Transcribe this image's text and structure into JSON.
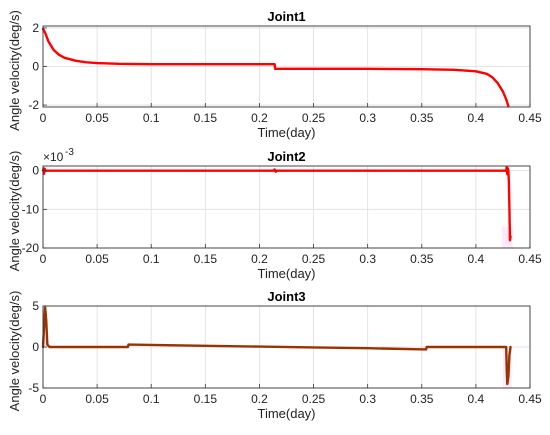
{
  "chart_data": [
    {
      "type": "line",
      "title": "Joint1",
      "xlabel": "Time(day)",
      "ylabel": "Angle velocity(deg/s)",
      "xlim": [
        0,
        0.45
      ],
      "ylim": [
        -2.1,
        2.1
      ],
      "xticks": [
        0,
        0.05,
        0.1,
        0.15,
        0.2,
        0.25,
        0.3,
        0.35,
        0.4,
        0.45
      ],
      "xtick_labels": [
        "0",
        "0.05",
        "0.1",
        "0.15",
        "0.2",
        "0.25",
        "0.3",
        "0.35",
        "0.4",
        "0.45"
      ],
      "yticks": [
        -2,
        0,
        2
      ],
      "ytick_labels": [
        "-2",
        "0",
        "2"
      ],
      "grid": true,
      "series": [
        {
          "color": "#ff0000",
          "x": [
            0,
            0.002,
            0.005,
            0.01,
            0.015,
            0.02,
            0.03,
            0.04,
            0.05,
            0.07,
            0.1,
            0.15,
            0.2,
            0.214,
            0.2145,
            0.216,
            0.25,
            0.3,
            0.35,
            0.38,
            0.4,
            0.41,
            0.415,
            0.42,
            0.425,
            0.428,
            0.43
          ],
          "y": [
            1.95,
            1.75,
            1.3,
            0.85,
            0.6,
            0.45,
            0.3,
            0.22,
            0.18,
            0.14,
            0.12,
            0.12,
            0.12,
            0.12,
            -0.12,
            -0.12,
            -0.12,
            -0.12,
            -0.14,
            -0.17,
            -0.25,
            -0.38,
            -0.55,
            -0.85,
            -1.3,
            -1.7,
            -2.05
          ]
        }
      ]
    },
    {
      "type": "line",
      "title": "Joint2",
      "xlabel": "Time(day)",
      "ylabel": "Angle velocity(deg/s)",
      "y_exponent_label": "×10",
      "y_exponent_power": "-3",
      "xlim": [
        0,
        0.45
      ],
      "ylim": [
        -20,
        1.2
      ],
      "xticks": [
        0,
        0.05,
        0.1,
        0.15,
        0.2,
        0.25,
        0.3,
        0.35,
        0.4,
        0.45
      ],
      "xtick_labels": [
        "0",
        "0.05",
        "0.1",
        "0.15",
        "0.2",
        "0.25",
        "0.3",
        "0.35",
        "0.4",
        "0.45"
      ],
      "yticks": [
        0,
        -10,
        -20
      ],
      "ytick_labels": [
        "0",
        "-10",
        "-20"
      ],
      "grid": true,
      "shaded_regions": [
        [
          0.424,
          0.434,
          -20,
          -14.5
        ]
      ],
      "series": [
        {
          "color": "#ff0000",
          "x": [
            0,
            0.0005,
            0.001,
            0.0015,
            0.002,
            0.1,
            0.2,
            0.213,
            0.214,
            0.215,
            0.216,
            0.3,
            0.4,
            0.428,
            0.4285,
            0.429,
            0.4295,
            0.43,
            0.4305,
            0.431,
            0.4315,
            0.432
          ],
          "y": [
            0,
            0.6,
            -0.8,
            0.5,
            0,
            0,
            0,
            0,
            0.3,
            -0.3,
            0,
            0,
            0,
            0,
            0.9,
            -0.9,
            0.6,
            0,
            -3,
            -10,
            -18,
            -17
          ]
        }
      ]
    },
    {
      "type": "line",
      "title": "Joint3",
      "xlabel": "Time(day)",
      "ylabel": "Angle velocity(deg/s)",
      "xlim": [
        0,
        0.45
      ],
      "ylim": [
        -5,
        5
      ],
      "xticks": [
        0,
        0.05,
        0.1,
        0.15,
        0.2,
        0.25,
        0.3,
        0.35,
        0.4,
        0.45
      ],
      "xtick_labels": [
        "0",
        "0.05",
        "0.1",
        "0.15",
        "0.2",
        "0.25",
        "0.3",
        "0.35",
        "0.4",
        "0.45"
      ],
      "yticks": [
        -5,
        0,
        5
      ],
      "ytick_labels": [
        "-5",
        "0",
        "5"
      ],
      "grid": true,
      "shaded_regions": [
        [
          0,
          0.003,
          0,
          5
        ],
        [
          0.425,
          0.433,
          -5,
          0
        ]
      ],
      "series": [
        {
          "color": "#993300",
          "x": [
            0,
            0.001,
            0.002,
            0.003,
            0.004,
            0.006,
            0.01,
            0.05,
            0.0785,
            0.079,
            0.1,
            0.15,
            0.2,
            0.25,
            0.3,
            0.354,
            0.3545,
            0.4,
            0.428,
            0.4285,
            0.429,
            0.43,
            0.431,
            0.432
          ],
          "y": [
            0,
            2.5,
            4.8,
            3.2,
            0.3,
            0,
            0,
            0,
            0,
            0.3,
            0.25,
            0.15,
            0.05,
            -0.05,
            -0.15,
            -0.3,
            0,
            0,
            0,
            -2.8,
            -4.5,
            -3.6,
            -1,
            0
          ]
        }
      ]
    }
  ]
}
